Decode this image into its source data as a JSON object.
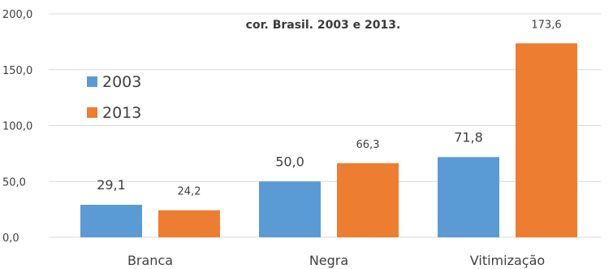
{
  "chart_data": {
    "type": "bar",
    "title": "cor. Brasil. 2003 e 2013.",
    "xlabel": "",
    "ylabel": "",
    "categories": [
      "Branca",
      "Negra",
      "Vitimização"
    ],
    "series": [
      {
        "name": "2003",
        "values": [
          29.1,
          50.0,
          71.8
        ],
        "labels": [
          "29,1",
          "50,0",
          "71,8"
        ],
        "color": "#5b9bd5"
      },
      {
        "name": "2013",
        "values": [
          24.2,
          66.3,
          173.6
        ],
        "labels": [
          "24,2",
          "66,3",
          "173,6"
        ],
        "color": "#ed7d31"
      }
    ],
    "ylim": [
      0,
      200
    ],
    "yticks": [
      0,
      50,
      100,
      150,
      200
    ],
    "ytick_labels": [
      "0,0",
      "50,0",
      "100,0",
      "150,0",
      "200,0"
    ],
    "grid": true,
    "legend_position": "top-left"
  }
}
